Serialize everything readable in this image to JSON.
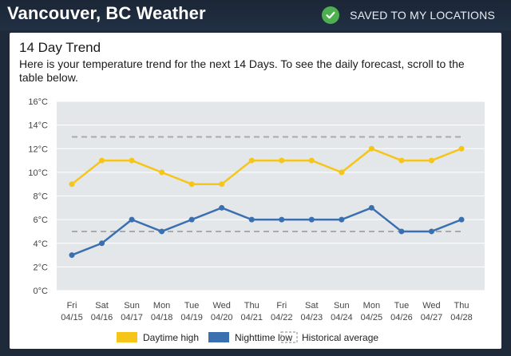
{
  "header": {
    "city_title": "Vancouver, BC Weather",
    "saved_label": "SAVED TO MY LOCATIONS",
    "saved_icon": "check-circle-icon"
  },
  "card": {
    "title": "14 Day Trend",
    "description": "Here is your temperature trend for the next 14 Days. To see the daily forecast, scroll to the table below."
  },
  "colors": {
    "high": "#f5c518",
    "low": "#3a6fb0",
    "historical": "#aaaaaa",
    "plot_bg": "#e4e7ea",
    "check": "#4caf50"
  },
  "chart_data": {
    "type": "line",
    "title": "",
    "xlabel": "",
    "ylabel": "",
    "ylim": [
      0,
      16
    ],
    "y_ticks": [
      "0°C",
      "2°C",
      "4°C",
      "6°C",
      "8°C",
      "10°C",
      "12°C",
      "14°C",
      "16°C"
    ],
    "y_tick_values": [
      0,
      2,
      4,
      6,
      8,
      10,
      12,
      14,
      16
    ],
    "days": [
      "Fri",
      "Sat",
      "Sun",
      "Mon",
      "Tue",
      "Wed",
      "Thu",
      "Fri",
      "Sat",
      "Sun",
      "Mon",
      "Tue",
      "Wed",
      "Thu"
    ],
    "dates": [
      "04/15",
      "04/16",
      "04/17",
      "04/18",
      "04/19",
      "04/20",
      "04/21",
      "04/22",
      "04/23",
      "04/24",
      "04/25",
      "04/26",
      "04/27",
      "04/28"
    ],
    "series": [
      {
        "name": "Daytime high",
        "values": [
          9,
          11,
          11,
          10,
          9,
          9,
          11,
          11,
          11,
          10,
          12,
          11,
          11,
          12
        ]
      },
      {
        "name": "Nighttime low",
        "values": [
          3,
          4,
          6,
          5,
          6,
          7,
          6,
          6,
          6,
          6,
          7,
          5,
          5,
          6
        ]
      }
    ],
    "historical_average": {
      "name": "Historical average",
      "high": 13,
      "low": 5
    },
    "grid": true,
    "legend_position": "bottom"
  }
}
